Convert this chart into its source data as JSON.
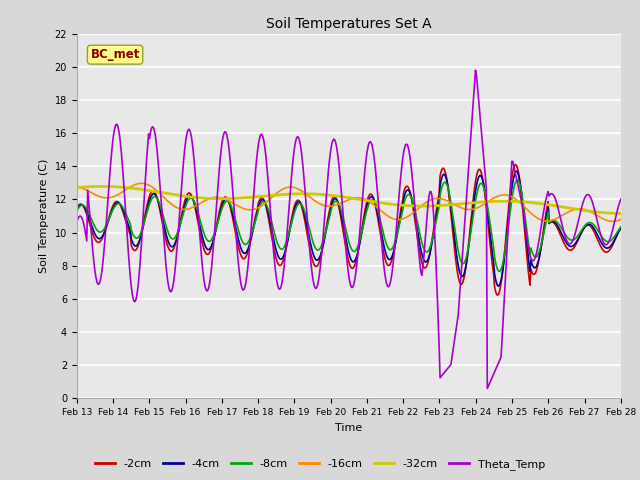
{
  "title": "Soil Temperatures Set A",
  "xlabel": "Time",
  "ylabel": "Soil Temperature (C)",
  "annotation": "BC_met",
  "ylim": [
    0,
    22
  ],
  "date_labels": [
    "Feb 13",
    "Feb 14",
    "Feb 15",
    "Feb 16",
    "Feb 17",
    "Feb 18",
    "Feb 19",
    "Feb 20",
    "Feb 21",
    "Feb 22",
    "Feb 23",
    "Feb 24",
    "Feb 25",
    "Feb 26",
    "Feb 27",
    "Feb 28"
  ],
  "series": {
    "-2cm": {
      "color": "#cc0000",
      "lw": 1.2
    },
    "-4cm": {
      "color": "#000099",
      "lw": 1.2
    },
    "-8cm": {
      "color": "#00aa00",
      "lw": 1.2
    },
    "-16cm": {
      "color": "#ff8800",
      "lw": 1.2
    },
    "-32cm": {
      "color": "#cccc00",
      "lw": 2.0
    },
    "Theta_Temp": {
      "color": "#aa00cc",
      "lw": 1.2
    }
  },
  "bg_color": "#d8d8d8",
  "plot_bg_color": "#e8e8e8",
  "annotation_bg": "#ffff88",
  "annotation_fg": "#880000",
  "n_points": 600
}
